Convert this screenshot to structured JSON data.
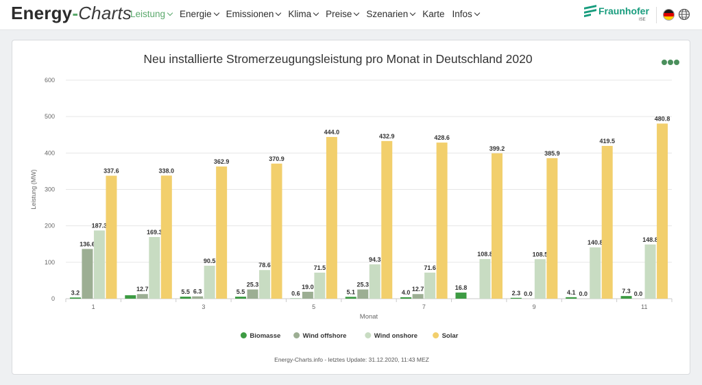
{
  "header": {
    "logo_word1": "Energy",
    "logo_dash": "-",
    "logo_word2": "Charts",
    "nav": [
      {
        "label": "Leistung",
        "dropdown": true,
        "active": true
      },
      {
        "label": "Energie",
        "dropdown": true,
        "active": false
      },
      {
        "label": "Emissionen",
        "dropdown": true,
        "active": false
      },
      {
        "label": "Klima",
        "dropdown": true,
        "active": false
      },
      {
        "label": "Preise",
        "dropdown": true,
        "active": false
      },
      {
        "label": "Szenarien",
        "dropdown": true,
        "active": false
      },
      {
        "label": "Karte",
        "dropdown": false,
        "active": false
      },
      {
        "label": "Infos",
        "dropdown": true,
        "active": false
      }
    ],
    "partner_name": "Fraunhofer",
    "partner_sub": "ISE",
    "language_icon": "germany-flag-icon",
    "globe_icon": "globe-icon"
  },
  "colors": {
    "accent": "#5aa86b",
    "biomasse": "#3d9b43",
    "wind_offshore": "#9cae93",
    "wind_onshore": "#c8dcc2",
    "solar": "#f2cf6c"
  },
  "chart_data": {
    "type": "bar",
    "title": "Neu installierte Stromerzeugungsleistung pro Monat in Deutschland 2020",
    "xlabel": "Monat",
    "ylabel": "Leistung (MW)",
    "ylim": [
      0,
      600
    ],
    "yticks": [
      0,
      100,
      200,
      300,
      400,
      500,
      600
    ],
    "categories": [
      1,
      2,
      3,
      4,
      5,
      6,
      7,
      8,
      9,
      10,
      11
    ],
    "xtick_labels": [
      "1",
      "3",
      "5",
      "7",
      "9",
      "11"
    ],
    "grid": true,
    "legend_position": "bottom",
    "series": [
      {
        "name": "Biomasse",
        "color": "#3d9b43",
        "values": [
          3.2,
          9.5,
          5.5,
          5.5,
          0.6,
          5.1,
          4.0,
          16.8,
          2.3,
          4.1,
          7.3
        ],
        "labels": [
          "3.2",
          null,
          "5.5",
          "5.5",
          "0.6",
          "5.1",
          "4.0",
          "16.8",
          "2.3",
          "4.1",
          "7.3"
        ]
      },
      {
        "name": "Wind offshore",
        "color": "#9cae93",
        "values": [
          136.6,
          12.7,
          6.3,
          25.3,
          19.0,
          25.3,
          12.7,
          0,
          0.0,
          0.0,
          0.0
        ],
        "labels": [
          "136.6",
          "12.7",
          "6.3",
          "25.3",
          "19.0",
          "25.3",
          "12.7",
          null,
          "0.0",
          "0.0",
          "0.0"
        ]
      },
      {
        "name": "Wind onshore",
        "color": "#c8dcc2",
        "values": [
          187.3,
          169.3,
          90.5,
          78.6,
          71.5,
          94.3,
          71.6,
          108.8,
          108.5,
          140.8,
          148.8
        ],
        "labels": [
          "187.3",
          "169.3",
          "90.5",
          "78.6",
          "71.5",
          "94.3",
          "71.6",
          "108.8",
          "108.5",
          "140.8",
          "148.8"
        ]
      },
      {
        "name": "Solar",
        "color": "#f2cf6c",
        "values": [
          337.6,
          338.0,
          362.9,
          370.9,
          444.0,
          432.9,
          428.6,
          399.2,
          385.9,
          419.5,
          480.8
        ],
        "labels": [
          "337.6",
          "338.0",
          "362.9",
          "370.9",
          "444.0",
          "432.9",
          "428.6",
          "399.2",
          "385.9",
          "419.5",
          "480.8"
        ]
      }
    ]
  },
  "footer": {
    "credit": "Energy-Charts.info - letztes Update: 31.12.2020, 11:43 MEZ"
  }
}
